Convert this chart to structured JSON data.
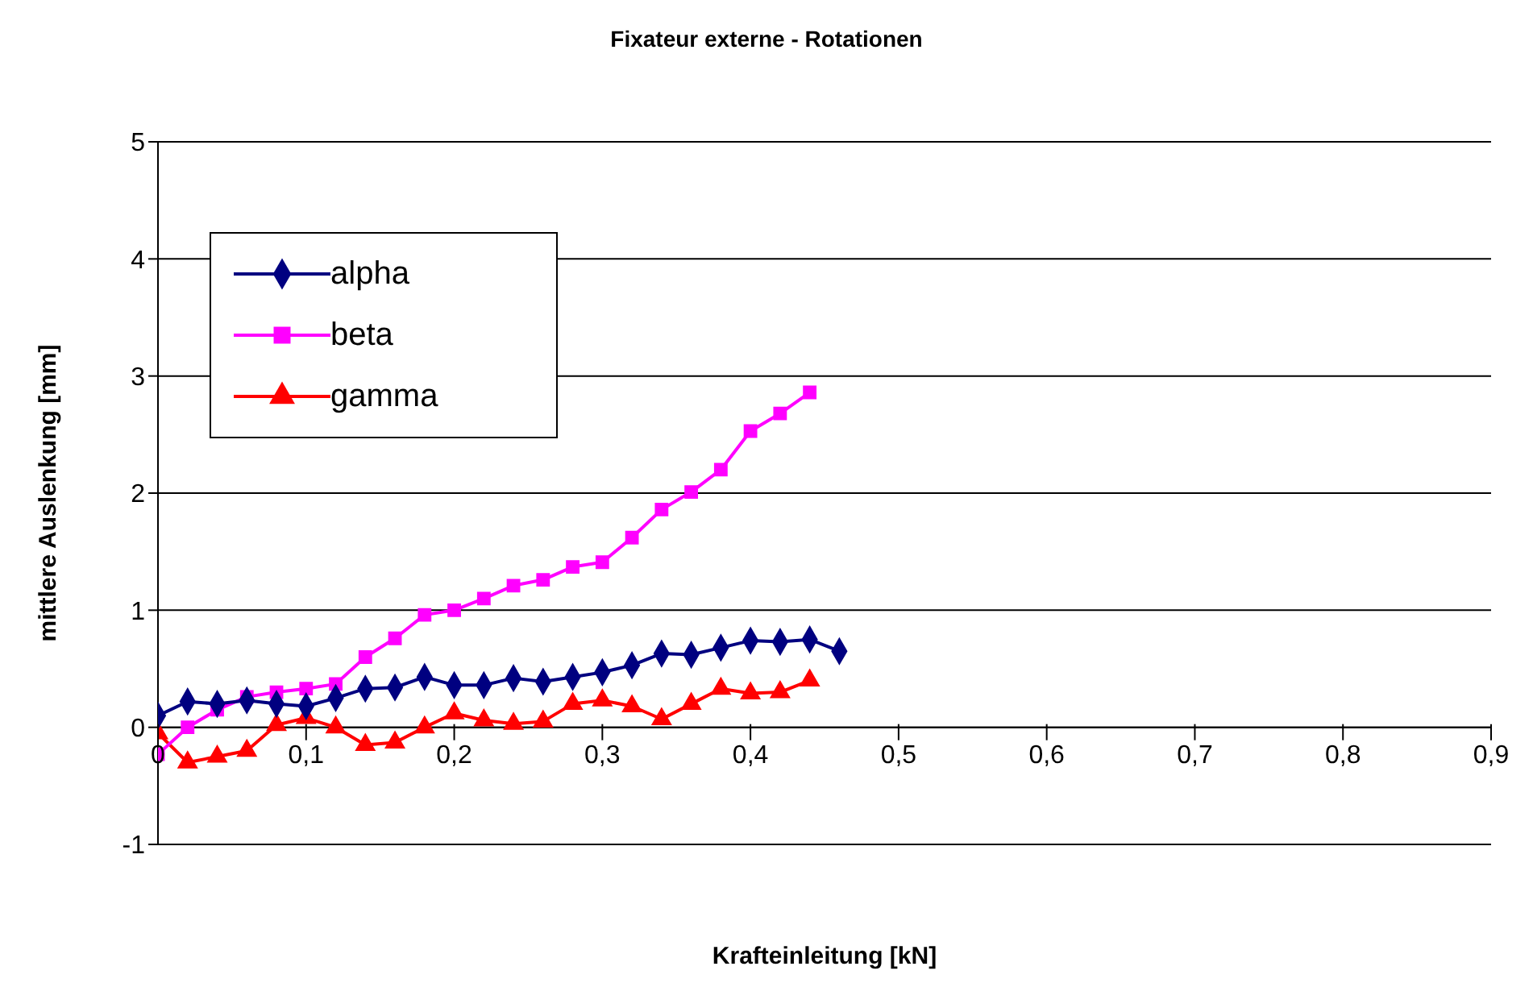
{
  "chart_data": {
    "type": "line",
    "title": "Fixateur externe - Rotationen",
    "xlabel": "Krafteinleitung [kN]",
    "ylabel": "mittlere Auslenkung [mm]",
    "x": [
      0,
      0.02,
      0.04,
      0.06,
      0.08,
      0.1,
      0.12,
      0.14,
      0.16,
      0.18,
      0.2,
      0.22,
      0.24,
      0.26,
      0.28,
      0.3,
      0.32,
      0.34,
      0.36,
      0.38,
      0.4,
      0.42,
      0.44,
      0.46
    ],
    "series": [
      {
        "name": "alpha",
        "color": "#000080",
        "marker": "diamond",
        "values": [
          0.1,
          0.22,
          0.2,
          0.23,
          0.2,
          0.18,
          0.25,
          0.33,
          0.34,
          0.43,
          0.36,
          0.36,
          0.42,
          0.39,
          0.43,
          0.47,
          0.53,
          0.63,
          0.62,
          0.68,
          0.74,
          0.73,
          0.75,
          0.65
        ]
      },
      {
        "name": "beta",
        "color": "#ff00ff",
        "marker": "square",
        "values": [
          -0.23,
          0,
          0.15,
          0.26,
          0.3,
          0.33,
          0.37,
          0.6,
          0.76,
          0.96,
          1.0,
          1.1,
          1.21,
          1.26,
          1.37,
          1.41,
          1.62,
          1.86,
          2.01,
          2.2,
          2.53,
          2.68,
          2.86,
          null
        ]
      },
      {
        "name": "gamma",
        "color": "#ff0000",
        "marker": "triangle",
        "values": [
          -0.05,
          -0.3,
          -0.25,
          -0.2,
          0.02,
          0.08,
          0,
          -0.15,
          -0.13,
          0,
          0.12,
          0.06,
          0.03,
          0.05,
          0.2,
          0.23,
          0.18,
          0.07,
          0.2,
          0.33,
          0.29,
          0.3,
          0.4,
          null
        ]
      }
    ],
    "xlim": [
      0,
      0.9
    ],
    "xticks": [
      0,
      {
        "value": 0.1,
        "label": "0,1"
      },
      {
        "value": 0.2,
        "label": "0,2"
      },
      {
        "value": 0.3,
        "label": "0,3"
      },
      {
        "value": 0.4,
        "label": "0,4"
      },
      {
        "value": 0.5,
        "label": "0,5"
      },
      {
        "value": 0.6,
        "label": "0,6"
      },
      {
        "value": 0.7,
        "label": "0,7"
      },
      {
        "value": 0.8,
        "label": "0,8"
      },
      {
        "value": 0.9,
        "label": "0,9"
      }
    ],
    "ylim": [
      -1,
      5
    ],
    "yticks": [
      -1,
      0,
      1,
      2,
      3,
      4,
      5
    ],
    "grid": "y",
    "legend": "top left",
    "line_style": "solid"
  }
}
